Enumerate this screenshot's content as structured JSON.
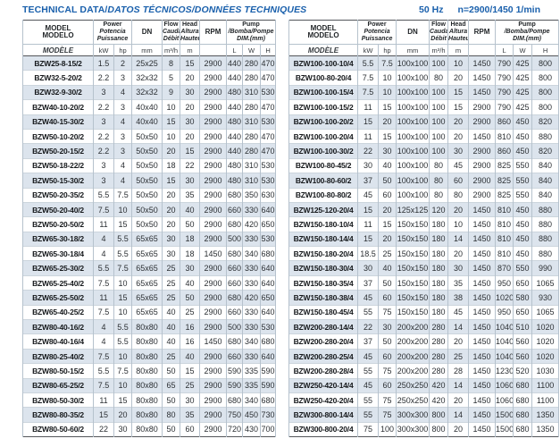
{
  "page": {
    "title_en": "TECHNICAL DATA/",
    "title_intl": "DATOS TÉCNICOS/DONNÉES TECHNIQUES",
    "frequency": "50 Hz",
    "speed": "n=2900/1450 1/min"
  },
  "colors": {
    "accent_blue": "#1a60ac",
    "row_shade": "#dce4ed",
    "grid_line": "#b6c2cd",
    "dark_rule": "#53565a"
  },
  "header": {
    "model": [
      "MODEL",
      "MODELO"
    ],
    "model_row2": "MODÈLE",
    "power": [
      "Power",
      "Potencia",
      "Puissance"
    ],
    "power_units": [
      "kW",
      "hp"
    ],
    "dn": "DN",
    "dn_unit": "mm",
    "flow": [
      "Flow",
      "Caudal",
      "Débit"
    ],
    "flow_unit": "m³/h",
    "head_col": [
      "Head",
      "Altura",
      "Hauteur"
    ],
    "head_unit": "m",
    "rpm": "RPM",
    "pump_dim_line1_a": "Pump",
    "pump_dim_line1_b": "/Bomba/Pompe",
    "pump_dim_line2": "DIM.(mm)",
    "pump_units": [
      "L",
      "W",
      "H"
    ]
  },
  "tables": [
    {
      "rows": [
        [
          "BZW25-8-15/2",
          "1.5",
          "2",
          "25x25",
          "8",
          "15",
          "2900",
          "440",
          "280",
          "470"
        ],
        [
          "BZW32-5-20/2",
          "2.2",
          "3",
          "32x32",
          "5",
          "20",
          "2900",
          "440",
          "280",
          "470"
        ],
        [
          "BZW32-9-30/2",
          "3",
          "4",
          "32x32",
          "9",
          "30",
          "2900",
          "480",
          "310",
          "530"
        ],
        [
          "BZW40-10-20/2",
          "2.2",
          "3",
          "40x40",
          "10",
          "20",
          "2900",
          "440",
          "280",
          "470"
        ],
        [
          "BZW40-15-30/2",
          "3",
          "4",
          "40x40",
          "15",
          "30",
          "2900",
          "480",
          "310",
          "530"
        ],
        [
          "BZW50-10-20/2",
          "2.2",
          "3",
          "50x50",
          "10",
          "20",
          "2900",
          "440",
          "280",
          "470"
        ],
        [
          "BZW50-20-15/2",
          "2.2",
          "3",
          "50x50",
          "20",
          "15",
          "2900",
          "440",
          "280",
          "470"
        ],
        [
          "BZW50-18-22/2",
          "3",
          "4",
          "50x50",
          "18",
          "22",
          "2900",
          "480",
          "310",
          "530"
        ],
        [
          "BZW50-15-30/2",
          "3",
          "4",
          "50x50",
          "15",
          "30",
          "2900",
          "480",
          "310",
          "530"
        ],
        [
          "BZW50-20-35/2",
          "5.5",
          "7.5",
          "50x50",
          "20",
          "35",
          "2900",
          "680",
          "350",
          "630"
        ],
        [
          "BZW50-20-40/2",
          "7.5",
          "10",
          "50x50",
          "20",
          "40",
          "2900",
          "660",
          "330",
          "640"
        ],
        [
          "BZW50-20-50/2",
          "11",
          "15",
          "50x50",
          "20",
          "50",
          "2900",
          "680",
          "420",
          "650"
        ],
        [
          "BZW65-30-18/2",
          "4",
          "5.5",
          "65x65",
          "30",
          "18",
          "2900",
          "500",
          "330",
          "530"
        ],
        [
          "BZW65-30-18/4",
          "4",
          "5.5",
          "65x65",
          "30",
          "18",
          "1450",
          "680",
          "340",
          "680"
        ],
        [
          "BZW65-25-30/2",
          "5.5",
          "7.5",
          "65x65",
          "25",
          "30",
          "2900",
          "660",
          "330",
          "640"
        ],
        [
          "BZW65-25-40/2",
          "7.5",
          "10",
          "65x65",
          "25",
          "40",
          "2900",
          "660",
          "330",
          "640"
        ],
        [
          "BZW65-25-50/2",
          "11",
          "15",
          "65x65",
          "25",
          "50",
          "2900",
          "680",
          "420",
          "650"
        ],
        [
          "BZW65-40-25/2",
          "7.5",
          "10",
          "65x65",
          "40",
          "25",
          "2900",
          "660",
          "330",
          "640"
        ],
        [
          "BZW80-40-16/2",
          "4",
          "5.5",
          "80x80",
          "40",
          "16",
          "2900",
          "500",
          "330",
          "530"
        ],
        [
          "BZW80-40-16/4",
          "4",
          "5.5",
          "80x80",
          "40",
          "16",
          "1450",
          "680",
          "340",
          "680"
        ],
        [
          "BZW80-25-40/2",
          "7.5",
          "10",
          "80x80",
          "25",
          "40",
          "2900",
          "660",
          "330",
          "640"
        ],
        [
          "BZW80-50-15/2",
          "5.5",
          "7.5",
          "80x80",
          "50",
          "15",
          "2900",
          "590",
          "335",
          "590"
        ],
        [
          "BZW80-65-25/2",
          "7.5",
          "10",
          "80x80",
          "65",
          "25",
          "2900",
          "590",
          "335",
          "590"
        ],
        [
          "BZW80-50-30/2",
          "11",
          "15",
          "80x80",
          "50",
          "30",
          "2900",
          "680",
          "340",
          "680"
        ],
        [
          "BZW80-80-35/2",
          "15",
          "20",
          "80x80",
          "80",
          "35",
          "2900",
          "750",
          "450",
          "730"
        ],
        [
          "BZW80-50-60/2",
          "22",
          "30",
          "80x80",
          "50",
          "60",
          "2900",
          "720",
          "430",
          "700"
        ]
      ]
    },
    {
      "rows": [
        [
          "BZW100-100-10/4",
          "5.5",
          "7.5",
          "100x100",
          "100",
          "10",
          "1450",
          "790",
          "425",
          "800"
        ],
        [
          "BZW100-80-20/4",
          "7.5",
          "10",
          "100x100",
          "80",
          "20",
          "1450",
          "790",
          "425",
          "800"
        ],
        [
          "BZW100-100-15/4",
          "7.5",
          "10",
          "100x100",
          "100",
          "15",
          "1450",
          "790",
          "425",
          "800"
        ],
        [
          "BZW100-100-15/2",
          "11",
          "15",
          "100x100",
          "100",
          "15",
          "2900",
          "790",
          "425",
          "800"
        ],
        [
          "BZW100-100-20/2",
          "15",
          "20",
          "100x100",
          "100",
          "20",
          "2900",
          "860",
          "450",
          "820"
        ],
        [
          "BZW100-100-20/4",
          "11",
          "15",
          "100x100",
          "100",
          "20",
          "1450",
          "810",
          "450",
          "880"
        ],
        [
          "BZW100-100-30/2",
          "22",
          "30",
          "100x100",
          "100",
          "30",
          "2900",
          "860",
          "450",
          "820"
        ],
        [
          "BZW100-80-45/2",
          "30",
          "40",
          "100x100",
          "80",
          "45",
          "2900",
          "825",
          "550",
          "840"
        ],
        [
          "BZW100-80-60/2",
          "37",
          "50",
          "100x100",
          "80",
          "60",
          "2900",
          "825",
          "550",
          "840"
        ],
        [
          "BZW100-80-80/2",
          "45",
          "60",
          "100x100",
          "80",
          "80",
          "2900",
          "825",
          "550",
          "840"
        ],
        [
          "BZW125-120-20/4",
          "15",
          "20",
          "125x125",
          "120",
          "20",
          "1450",
          "810",
          "450",
          "880"
        ],
        [
          "BZW150-180-10/4",
          "11",
          "15",
          "150x150",
          "180",
          "10",
          "1450",
          "810",
          "450",
          "880"
        ],
        [
          "BZW150-180-14/4",
          "15",
          "20",
          "150x150",
          "180",
          "14",
          "1450",
          "810",
          "450",
          "880"
        ],
        [
          "BZW150-180-20/4",
          "18.5",
          "25",
          "150x150",
          "180",
          "20",
          "1450",
          "810",
          "450",
          "880"
        ],
        [
          "BZW150-180-30/4",
          "30",
          "40",
          "150x150",
          "180",
          "30",
          "1450",
          "870",
          "550",
          "990"
        ],
        [
          "BZW150-180-35/4",
          "37",
          "50",
          "150x150",
          "180",
          "35",
          "1450",
          "950",
          "650",
          "1065"
        ],
        [
          "BZW150-180-38/4",
          "45",
          "60",
          "150x150",
          "180",
          "38",
          "1450",
          "1020",
          "580",
          "930"
        ],
        [
          "BZW150-180-45/4",
          "55",
          "75",
          "150x150",
          "180",
          "45",
          "1450",
          "950",
          "650",
          "1065"
        ],
        [
          "BZW200-280-14/4",
          "22",
          "30",
          "200x200",
          "280",
          "14",
          "1450",
          "1040",
          "510",
          "1020"
        ],
        [
          "BZW200-280-20/4",
          "37",
          "50",
          "200x200",
          "280",
          "20",
          "1450",
          "1040",
          "560",
          "1020"
        ],
        [
          "BZW200-280-25/4",
          "45",
          "60",
          "200x200",
          "280",
          "25",
          "1450",
          "1040",
          "560",
          "1020"
        ],
        [
          "BZW200-280-28/4",
          "55",
          "75",
          "200x200",
          "280",
          "28",
          "1450",
          "1230",
          "520",
          "1030"
        ],
        [
          "BZW250-420-14/4",
          "45",
          "60",
          "250x250",
          "420",
          "14",
          "1450",
          "1060",
          "680",
          "1100"
        ],
        [
          "BZW250-420-20/4",
          "55",
          "75",
          "250x250",
          "420",
          "20",
          "1450",
          "1060",
          "680",
          "1100"
        ],
        [
          "BZW300-800-14/4",
          "55",
          "75",
          "300x300",
          "800",
          "14",
          "1450",
          "1500",
          "680",
          "1350"
        ],
        [
          "BZW300-800-20/4",
          "75",
          "100",
          "300x300",
          "800",
          "20",
          "1450",
          "1500",
          "680",
          "1350"
        ]
      ]
    }
  ]
}
